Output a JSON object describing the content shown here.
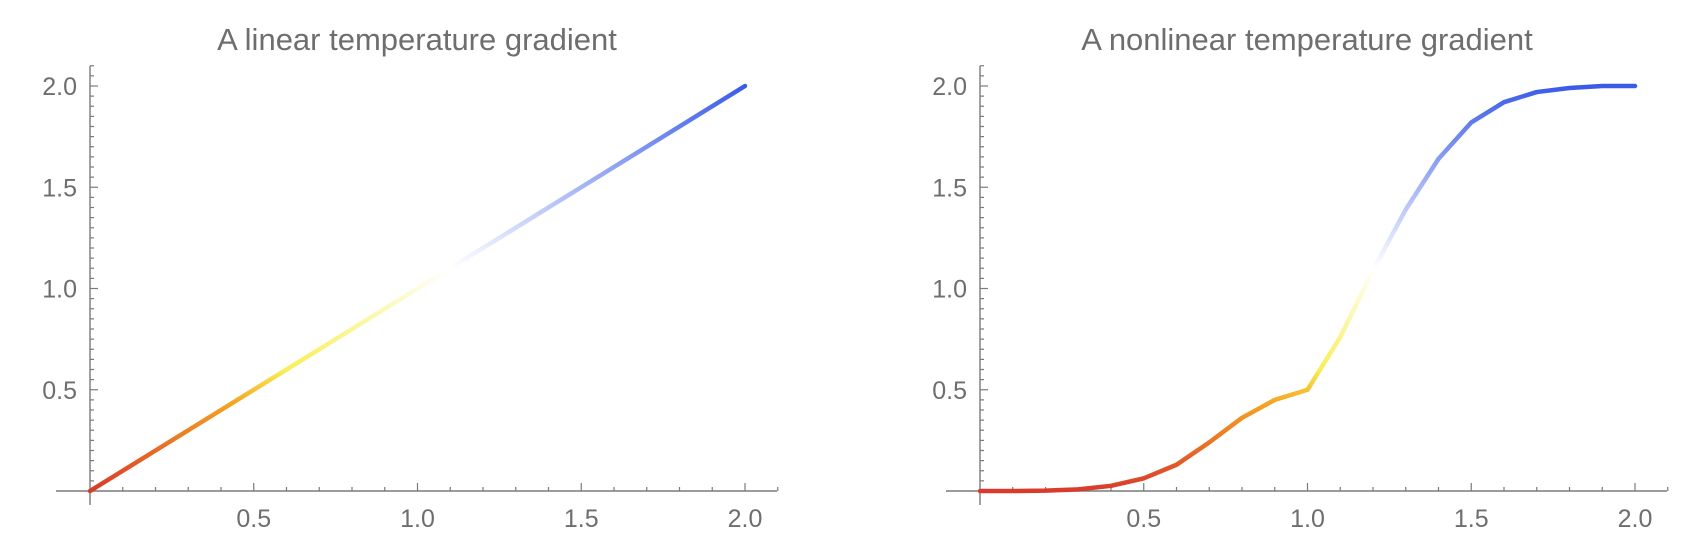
{
  "chart_data": [
    {
      "type": "line",
      "title": "A linear temperature gradient",
      "xlabel": "",
      "ylabel": "",
      "xlim": [
        0,
        2.1
      ],
      "ylim": [
        0,
        2.1
      ],
      "x_ticks": [
        "0.5",
        "1.0",
        "1.5",
        "2.0"
      ],
      "y_ticks": [
        "0.5",
        "1.0",
        "1.5",
        "2.0"
      ],
      "grid": false,
      "color_gradient": [
        "#d83a2c",
        "#f5a623",
        "#f7f056",
        "#ffffff",
        "#3a5be8"
      ],
      "series": [
        {
          "x": [
            0,
            0.25,
            0.5,
            0.75,
            1.0,
            1.25,
            1.5,
            1.75,
            2.0
          ],
          "y": [
            0,
            0.25,
            0.5,
            0.75,
            1.0,
            1.25,
            1.5,
            1.75,
            2.0
          ]
        }
      ]
    },
    {
      "type": "line",
      "title": "A nonlinear temperature gradient",
      "xlabel": "",
      "ylabel": "",
      "xlim": [
        0,
        2.1
      ],
      "ylim": [
        0,
        2.1
      ],
      "x_ticks": [
        "0.5",
        "1.0",
        "1.5",
        "2.0"
      ],
      "y_ticks": [
        "0.5",
        "1.0",
        "1.5",
        "2.0"
      ],
      "grid": false,
      "color_gradient": [
        "#d83a2c",
        "#f5a623",
        "#f7f056",
        "#ffffff",
        "#3a5be8"
      ],
      "series": [
        {
          "x": [
            0,
            0.1,
            0.2,
            0.3,
            0.4,
            0.5,
            0.6,
            0.7,
            0.8,
            0.9,
            1.0,
            1.1,
            1.2,
            1.3,
            1.4,
            1.5,
            1.6,
            1.7,
            1.8,
            1.9,
            2.0
          ],
          "y": [
            0,
            0.0001,
            0.0016,
            0.0081,
            0.0256,
            0.0625,
            0.1296,
            0.2401,
            0.3614,
            0.45,
            0.5,
            0.76,
            1.09,
            1.39,
            1.64,
            1.82,
            1.92,
            1.97,
            1.99,
            2.0,
            2.0
          ]
        }
      ]
    }
  ]
}
